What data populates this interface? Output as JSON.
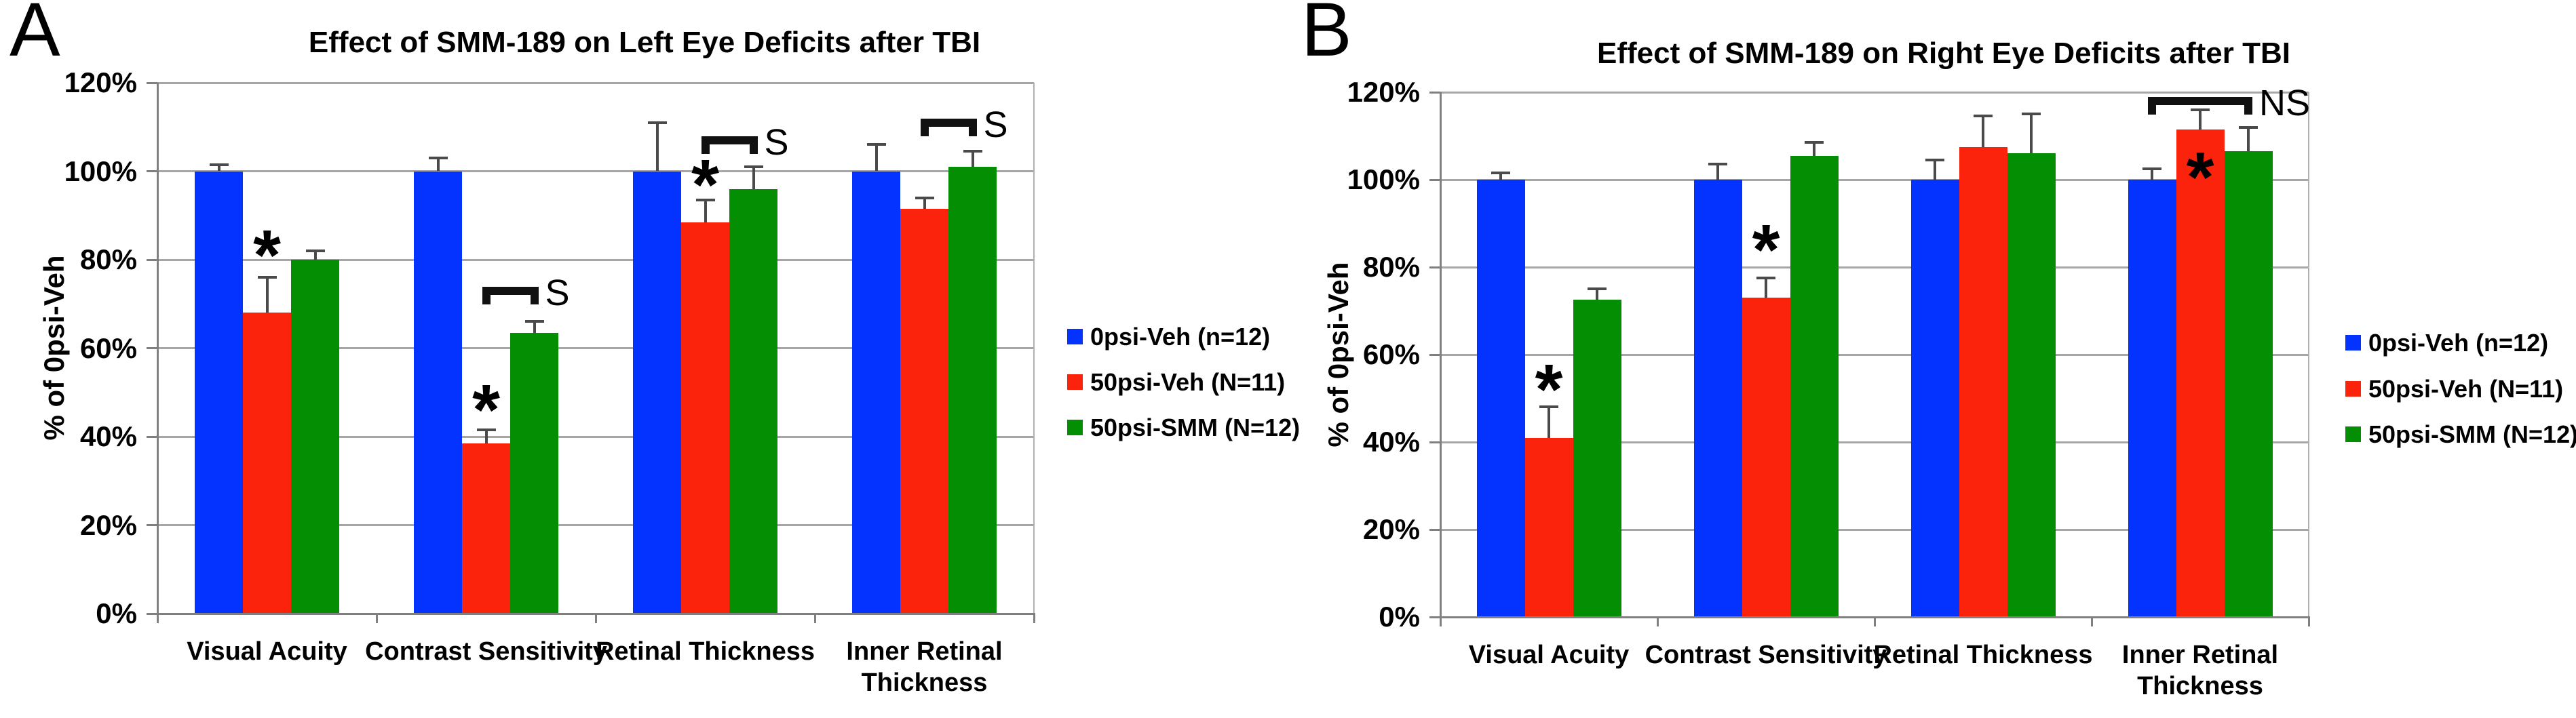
{
  "chart_data": [
    {
      "type": "bar",
      "panel_letter": "A",
      "title": "Effect of SMM-189 on Left Eye Deficits after TBI",
      "ylabel": "% of 0psi-Veh",
      "ylim": [
        0,
        120
      ],
      "ytick_labels": [
        "0%",
        "20%",
        "40%",
        "60%",
        "80%",
        "100%",
        "120%"
      ],
      "grid": true,
      "legend_position": "right",
      "categories": [
        "Visual Acuity",
        "Contrast Sensitivity",
        "Retinal Thickness",
        "Inner Retinal Thickness"
      ],
      "category_label_lines": [
        [
          "Visual Acuity"
        ],
        [
          "Contrast Sensitivity"
        ],
        [
          "Retinal Thickness"
        ],
        [
          "Inner Retinal",
          "Thickness"
        ]
      ],
      "series": [
        {
          "name": "0psi-Veh (n=12)",
          "color": "#0433FF",
          "values": [
            100,
            100,
            100,
            100
          ],
          "errors": [
            1.5,
            3,
            11,
            6
          ]
        },
        {
          "name": "50psi-Veh (N=11)",
          "color": "#FB230C",
          "values": [
            68,
            38.5,
            88.5,
            91.5
          ],
          "errors": [
            8,
            3,
            5,
            2.5
          ]
        },
        {
          "name": "50psi-SMM (N=12)",
          "color": "#048E04",
          "values": [
            80,
            63.5,
            96,
            101
          ],
          "errors": [
            2,
            2.5,
            5,
            3.5
          ]
        }
      ],
      "annotations": {
        "asterisks": [
          {
            "category_index": 0,
            "series_index": 1,
            "value_y": 84
          },
          {
            "category_index": 1,
            "series_index": 1,
            "value_y": 49
          },
          {
            "category_index": 2,
            "series_index": 1,
            "value_y": 100
          }
        ],
        "brackets": [
          {
            "category_index": 1,
            "from_series": 1,
            "to_series": 2,
            "value_y": 73,
            "label": "S"
          },
          {
            "category_index": 2,
            "from_series": 1,
            "to_series": 2,
            "value_y": 107,
            "label": "S"
          },
          {
            "category_index": 3,
            "from_series": 1,
            "to_series": 2,
            "value_y": 111,
            "label": "S"
          }
        ]
      }
    },
    {
      "type": "bar",
      "panel_letter": "B",
      "title": "Effect of SMM-189 on Right Eye Deficits after TBI",
      "ylabel": "% of 0psi-Veh",
      "ylim": [
        0,
        120
      ],
      "ytick_labels": [
        "0%",
        "20%",
        "40%",
        "60%",
        "80%",
        "100%",
        "120%"
      ],
      "grid": true,
      "legend_position": "right",
      "categories": [
        "Visual Acuity",
        "Contrast Sensitivity",
        "Retinal Thickness",
        "Inner Retinal Thickness"
      ],
      "category_label_lines": [
        [
          "Visual Acuity"
        ],
        [
          "Contrast Sensitivity"
        ],
        [
          "Retinal Thickness"
        ],
        [
          "Inner Retinal",
          "Thickness"
        ]
      ],
      "series": [
        {
          "name": "0psi-Veh (n=12)",
          "color": "#0433FF",
          "values": [
            100,
            100,
            100,
            100
          ],
          "errors": [
            1.5,
            3.5,
            4.5,
            2.5
          ]
        },
        {
          "name": "50psi-Veh (N=11)",
          "color": "#FB230C",
          "values": [
            41,
            73,
            107.5,
            111.5
          ],
          "errors": [
            7,
            4.5,
            7,
            4.5
          ]
        },
        {
          "name": "50psi-SMM (N=12)",
          "color": "#048E04",
          "values": [
            72.5,
            105.5,
            106,
            106.5
          ],
          "errors": [
            2.5,
            3,
            9,
            5.5
          ]
        }
      ],
      "annotations": {
        "asterisks": [
          {
            "category_index": 0,
            "series_index": 1,
            "value_y": 55
          },
          {
            "category_index": 1,
            "series_index": 1,
            "value_y": 87
          },
          {
            "category_index": 3,
            "series_index": 1,
            "value_y": 103.5
          }
        ],
        "brackets": [
          {
            "category_index": 3,
            "from_series": 0,
            "to_series": 2,
            "value_y": 118,
            "label": "NS"
          }
        ]
      }
    }
  ]
}
